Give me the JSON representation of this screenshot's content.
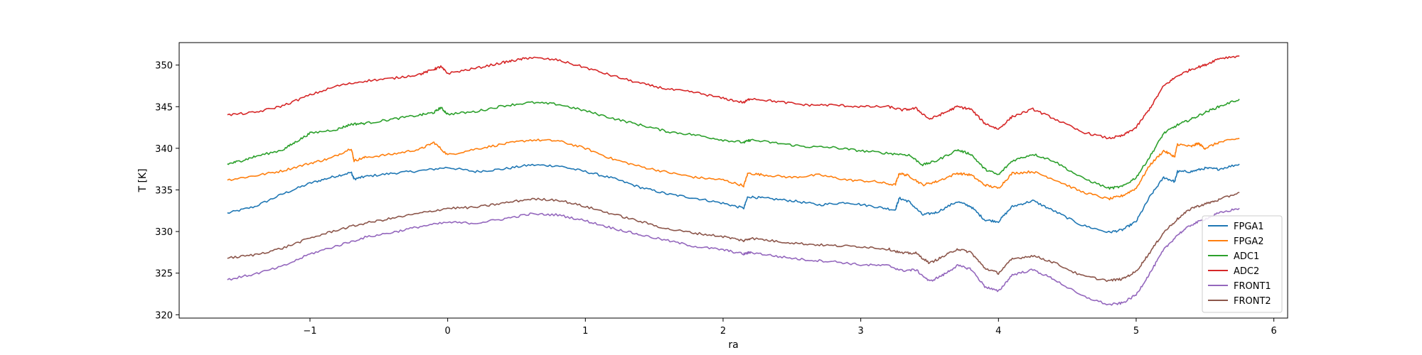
{
  "chart_data": {
    "type": "line",
    "title": "",
    "xlabel": "ra",
    "ylabel": "T [K]",
    "xlim": [
      -1.95,
      6.1
    ],
    "ylim": [
      319.6,
      352.7
    ],
    "xticks": [
      -1,
      0,
      1,
      2,
      3,
      4,
      5,
      6
    ],
    "yticks": [
      320,
      325,
      330,
      335,
      340,
      345,
      350
    ],
    "grid": false,
    "legend_position": "lower-right",
    "series": [
      {
        "name": "FPGA1",
        "color": "#1f77b4",
        "x": [
          -1.6,
          -1.4,
          -1.2,
          -1.0,
          -0.85,
          -0.7,
          -0.68,
          -0.6,
          -0.4,
          -0.2,
          0.0,
          0.2,
          0.4,
          0.6,
          0.8,
          1.0,
          1.2,
          1.4,
          1.6,
          1.8,
          2.0,
          2.15,
          2.18,
          2.3,
          2.5,
          2.7,
          2.9,
          3.1,
          3.25,
          3.28,
          3.35,
          3.45,
          3.55,
          3.7,
          3.8,
          3.9,
          4.0,
          4.1,
          4.25,
          4.4,
          4.6,
          4.8,
          4.9,
          5.0,
          5.1,
          5.2,
          5.28,
          5.3,
          5.4,
          5.5,
          5.6,
          5.75
        ],
        "y": [
          332.2,
          333.0,
          334.5,
          335.8,
          336.5,
          337.1,
          336.3,
          336.6,
          337.0,
          337.3,
          337.7,
          337.2,
          337.5,
          338.0,
          337.9,
          337.2,
          336.4,
          335.3,
          334.5,
          334.0,
          333.4,
          332.8,
          334.2,
          334.0,
          333.7,
          333.2,
          333.5,
          333.0,
          332.6,
          334.0,
          333.6,
          332.0,
          332.3,
          333.6,
          333.0,
          331.4,
          331.2,
          333.0,
          333.7,
          332.5,
          330.8,
          329.9,
          330.2,
          331.2,
          334.2,
          336.5,
          336.0,
          337.2,
          337.2,
          337.6,
          337.5,
          338.1
        ]
      },
      {
        "name": "FPGA2",
        "color": "#ff7f0e",
        "x": [
          -1.6,
          -1.4,
          -1.2,
          -1.0,
          -0.85,
          -0.7,
          -0.68,
          -0.6,
          -0.4,
          -0.2,
          -0.1,
          0.0,
          0.2,
          0.4,
          0.6,
          0.8,
          1.0,
          1.2,
          1.4,
          1.6,
          1.8,
          2.0,
          2.15,
          2.18,
          2.3,
          2.5,
          2.7,
          2.9,
          3.1,
          3.25,
          3.28,
          3.35,
          3.45,
          3.55,
          3.7,
          3.8,
          3.9,
          4.0,
          4.1,
          4.25,
          4.4,
          4.6,
          4.8,
          4.9,
          5.0,
          5.1,
          5.2,
          5.28,
          5.3,
          5.4,
          5.45,
          5.5,
          5.6,
          5.75
        ],
        "y": [
          336.2,
          336.7,
          337.3,
          338.2,
          338.8,
          340.0,
          338.5,
          338.9,
          339.3,
          339.9,
          340.7,
          339.2,
          339.9,
          340.5,
          341.0,
          340.9,
          340.0,
          338.7,
          337.8,
          337.1,
          336.5,
          336.2,
          335.5,
          337.0,
          336.8,
          336.5,
          336.8,
          336.2,
          336.0,
          335.6,
          337.0,
          336.7,
          335.6,
          336.0,
          337.0,
          336.8,
          335.6,
          335.2,
          337.0,
          337.2,
          336.3,
          334.8,
          333.9,
          334.3,
          335.2,
          338.0,
          339.7,
          339.0,
          340.5,
          340.2,
          340.6,
          340.0,
          340.7,
          341.2
        ]
      },
      {
        "name": "ADC1",
        "color": "#2ca02c",
        "x": [
          -1.6,
          -1.5,
          -1.4,
          -1.2,
          -1.1,
          -1.0,
          -0.8,
          -0.7,
          -0.6,
          -0.4,
          -0.2,
          -0.1,
          -0.05,
          0.0,
          0.2,
          0.4,
          0.6,
          0.8,
          1.0,
          1.2,
          1.4,
          1.6,
          1.8,
          2.0,
          2.15,
          2.2,
          2.4,
          2.6,
          2.8,
          3.0,
          3.2,
          3.35,
          3.45,
          3.55,
          3.7,
          3.8,
          3.9,
          4.0,
          4.1,
          4.25,
          4.4,
          4.6,
          4.8,
          4.9,
          5.0,
          5.1,
          5.2,
          5.3,
          5.4,
          5.5,
          5.6,
          5.75
        ],
        "y": [
          338.1,
          338.5,
          339.0,
          339.8,
          340.8,
          341.8,
          342.3,
          342.9,
          343.0,
          343.5,
          344.0,
          344.3,
          344.9,
          344.1,
          344.4,
          345.1,
          345.5,
          345.3,
          344.5,
          343.6,
          342.8,
          342.0,
          341.6,
          341.0,
          340.7,
          341.0,
          340.6,
          340.2,
          340.1,
          339.7,
          339.4,
          339.2,
          338.0,
          338.5,
          339.8,
          339.3,
          337.5,
          336.8,
          338.5,
          339.3,
          338.5,
          336.5,
          335.2,
          335.4,
          336.5,
          339.0,
          341.8,
          342.8,
          343.5,
          344.3,
          345.0,
          345.9
        ]
      },
      {
        "name": "ADC2",
        "color": "#d62728",
        "x": [
          -1.6,
          -1.4,
          -1.2,
          -1.0,
          -0.8,
          -0.6,
          -0.4,
          -0.2,
          -0.1,
          -0.05,
          0.0,
          0.2,
          0.4,
          0.5,
          0.6,
          0.8,
          1.0,
          1.2,
          1.4,
          1.6,
          1.8,
          2.0,
          2.15,
          2.2,
          2.4,
          2.6,
          2.8,
          3.0,
          3.2,
          3.3,
          3.4,
          3.5,
          3.6,
          3.7,
          3.8,
          3.9,
          4.0,
          4.1,
          4.25,
          4.4,
          4.6,
          4.8,
          4.9,
          5.0,
          5.1,
          5.2,
          5.3,
          5.4,
          5.5,
          5.6,
          5.75
        ],
        "y": [
          344.0,
          344.3,
          345.1,
          346.4,
          347.5,
          348.1,
          348.4,
          348.9,
          349.5,
          349.8,
          349.0,
          349.6,
          350.3,
          350.6,
          350.9,
          350.6,
          349.7,
          348.7,
          347.8,
          347.1,
          346.7,
          346.0,
          345.5,
          346.0,
          345.6,
          345.2,
          345.2,
          345.0,
          345.0,
          344.6,
          344.8,
          343.5,
          344.2,
          345.0,
          344.7,
          343.0,
          342.3,
          343.8,
          344.7,
          343.6,
          342.0,
          341.2,
          341.5,
          342.5,
          344.8,
          347.5,
          348.7,
          349.5,
          350.0,
          350.8,
          351.1
        ]
      },
      {
        "name": "FRONT1",
        "color": "#9467bd",
        "x": [
          -1.6,
          -1.4,
          -1.2,
          -1.0,
          -0.8,
          -0.6,
          -0.4,
          -0.2,
          0.0,
          0.2,
          0.4,
          0.6,
          0.8,
          1.0,
          1.2,
          1.4,
          1.6,
          1.8,
          2.0,
          2.15,
          2.2,
          2.4,
          2.6,
          2.8,
          3.0,
          3.2,
          3.3,
          3.4,
          3.5,
          3.6,
          3.7,
          3.8,
          3.9,
          4.0,
          4.1,
          4.25,
          4.4,
          4.6,
          4.8,
          4.9,
          5.0,
          5.1,
          5.2,
          5.3,
          5.4,
          5.5,
          5.6,
          5.75
        ],
        "y": [
          324.2,
          324.9,
          325.8,
          327.3,
          328.3,
          329.3,
          329.9,
          330.6,
          331.1,
          331.0,
          331.5,
          332.1,
          332.0,
          331.3,
          330.4,
          329.6,
          328.9,
          328.2,
          327.8,
          327.3,
          327.5,
          327.0,
          326.6,
          326.4,
          326.0,
          325.9,
          325.3,
          325.4,
          324.0,
          324.8,
          325.9,
          325.5,
          323.4,
          322.8,
          324.8,
          325.4,
          324.3,
          322.3,
          321.2,
          321.4,
          322.4,
          325.0,
          327.8,
          329.6,
          330.8,
          331.5,
          332.2,
          332.8
        ]
      },
      {
        "name": "FRONT2",
        "color": "#8c564b",
        "x": [
          -1.6,
          -1.4,
          -1.2,
          -1.0,
          -0.8,
          -0.6,
          -0.4,
          -0.2,
          0.0,
          0.2,
          0.4,
          0.6,
          0.8,
          1.0,
          1.2,
          1.4,
          1.6,
          1.8,
          2.0,
          2.15,
          2.2,
          2.4,
          2.6,
          2.8,
          3.0,
          3.2,
          3.3,
          3.4,
          3.5,
          3.6,
          3.7,
          3.8,
          3.9,
          4.0,
          4.1,
          4.25,
          4.4,
          4.6,
          4.8,
          4.9,
          5.0,
          5.1,
          5.2,
          5.3,
          5.4,
          5.5,
          5.6,
          5.75
        ],
        "y": [
          326.8,
          327.2,
          328.0,
          329.2,
          330.2,
          331.0,
          331.6,
          332.2,
          332.8,
          332.9,
          333.4,
          333.9,
          333.8,
          333.0,
          332.1,
          331.2,
          330.3,
          329.8,
          329.4,
          328.9,
          329.2,
          328.8,
          328.5,
          328.3,
          328.2,
          327.9,
          327.4,
          327.4,
          326.2,
          327.0,
          327.9,
          327.5,
          325.6,
          325.0,
          326.7,
          327.1,
          326.3,
          324.7,
          324.1,
          324.3,
          325.2,
          327.5,
          329.9,
          331.5,
          332.8,
          333.3,
          333.8,
          334.7
        ]
      }
    ]
  }
}
